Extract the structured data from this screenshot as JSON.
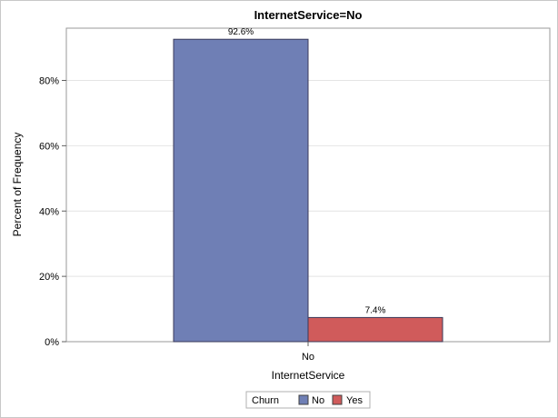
{
  "chart_data": {
    "type": "bar",
    "title": "InternetService=No",
    "xlabel": "InternetService",
    "ylabel": "Percent of Frequency",
    "categories": [
      "No"
    ],
    "series": [
      {
        "name": "No",
        "values": [
          92.6
        ],
        "label": "92.6%",
        "color": "#6f7fb5"
      },
      {
        "name": "Yes",
        "values": [
          7.4
        ],
        "label": "7.4%",
        "color": "#d05b5b"
      }
    ],
    "ylim": [
      0,
      96
    ],
    "yticks": [
      0,
      20,
      40,
      60,
      80
    ],
    "ytick_labels": [
      "0%",
      "20%",
      "40%",
      "60%",
      "80%"
    ],
    "grid": true,
    "legend": {
      "title": "Churn",
      "position": "bottom-center"
    }
  }
}
